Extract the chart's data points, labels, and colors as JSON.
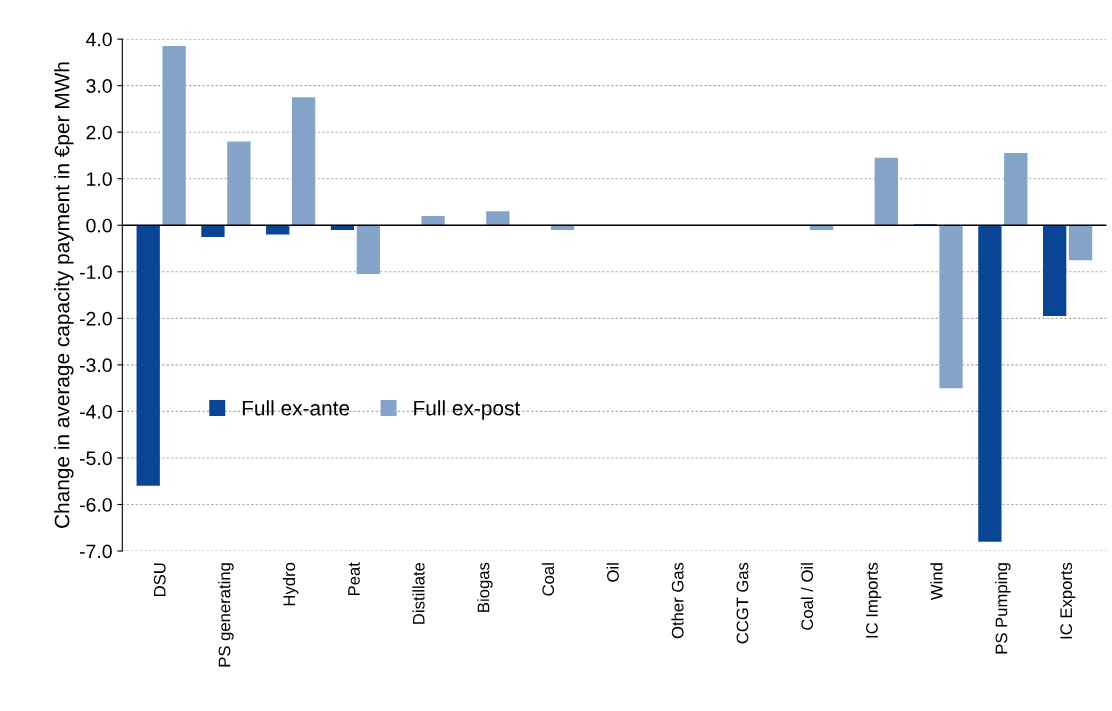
{
  "chart_data": {
    "type": "bar",
    "ylabel": "Change in average capacity payment in €per MWh",
    "categories": [
      "DSU",
      "PS generating",
      "Hydro",
      "Peat",
      "Distillate",
      "Biogas",
      "Coal",
      "Oil",
      "Other Gas",
      "CCGT Gas",
      "Coal / Oil",
      "IC Imports",
      "Wind",
      "PS Pumping",
      "IC Exports"
    ],
    "series": [
      {
        "name": "Full ex-ante",
        "color": "#0a4595",
        "values": [
          -5.6,
          -0.25,
          -0.2,
          -0.1,
          0,
          0,
          0,
          0,
          0,
          0,
          0,
          0,
          0.02,
          -6.8,
          -1.95
        ]
      },
      {
        "name": "Full ex-post",
        "color": "#86a4c9",
        "values": [
          3.85,
          1.8,
          2.75,
          -1.05,
          0.2,
          0.3,
          -0.1,
          0,
          0,
          0,
          -0.1,
          1.45,
          -3.5,
          1.55,
          -0.75
        ]
      }
    ],
    "ylim": [
      -7.0,
      4.0
    ],
    "yticks": [
      {
        "value": -7,
        "label": "-7.0"
      },
      {
        "value": -6,
        "label": "-6.0"
      },
      {
        "value": -5,
        "label": "-5.0"
      },
      {
        "value": -4,
        "label": "-4.0"
      },
      {
        "value": -3,
        "label": "-3.0"
      },
      {
        "value": -2,
        "label": "-2.0"
      },
      {
        "value": -1,
        "label": "-1.0"
      },
      {
        "value": 0,
        "label": "0.0"
      },
      {
        "value": 1,
        "label": "1.0"
      },
      {
        "value": 2,
        "label": "2.0"
      },
      {
        "value": 3,
        "label": "3.0"
      },
      {
        "value": 4,
        "label": "4.0"
      }
    ],
    "grid": "y",
    "legend": "bottom left"
  }
}
